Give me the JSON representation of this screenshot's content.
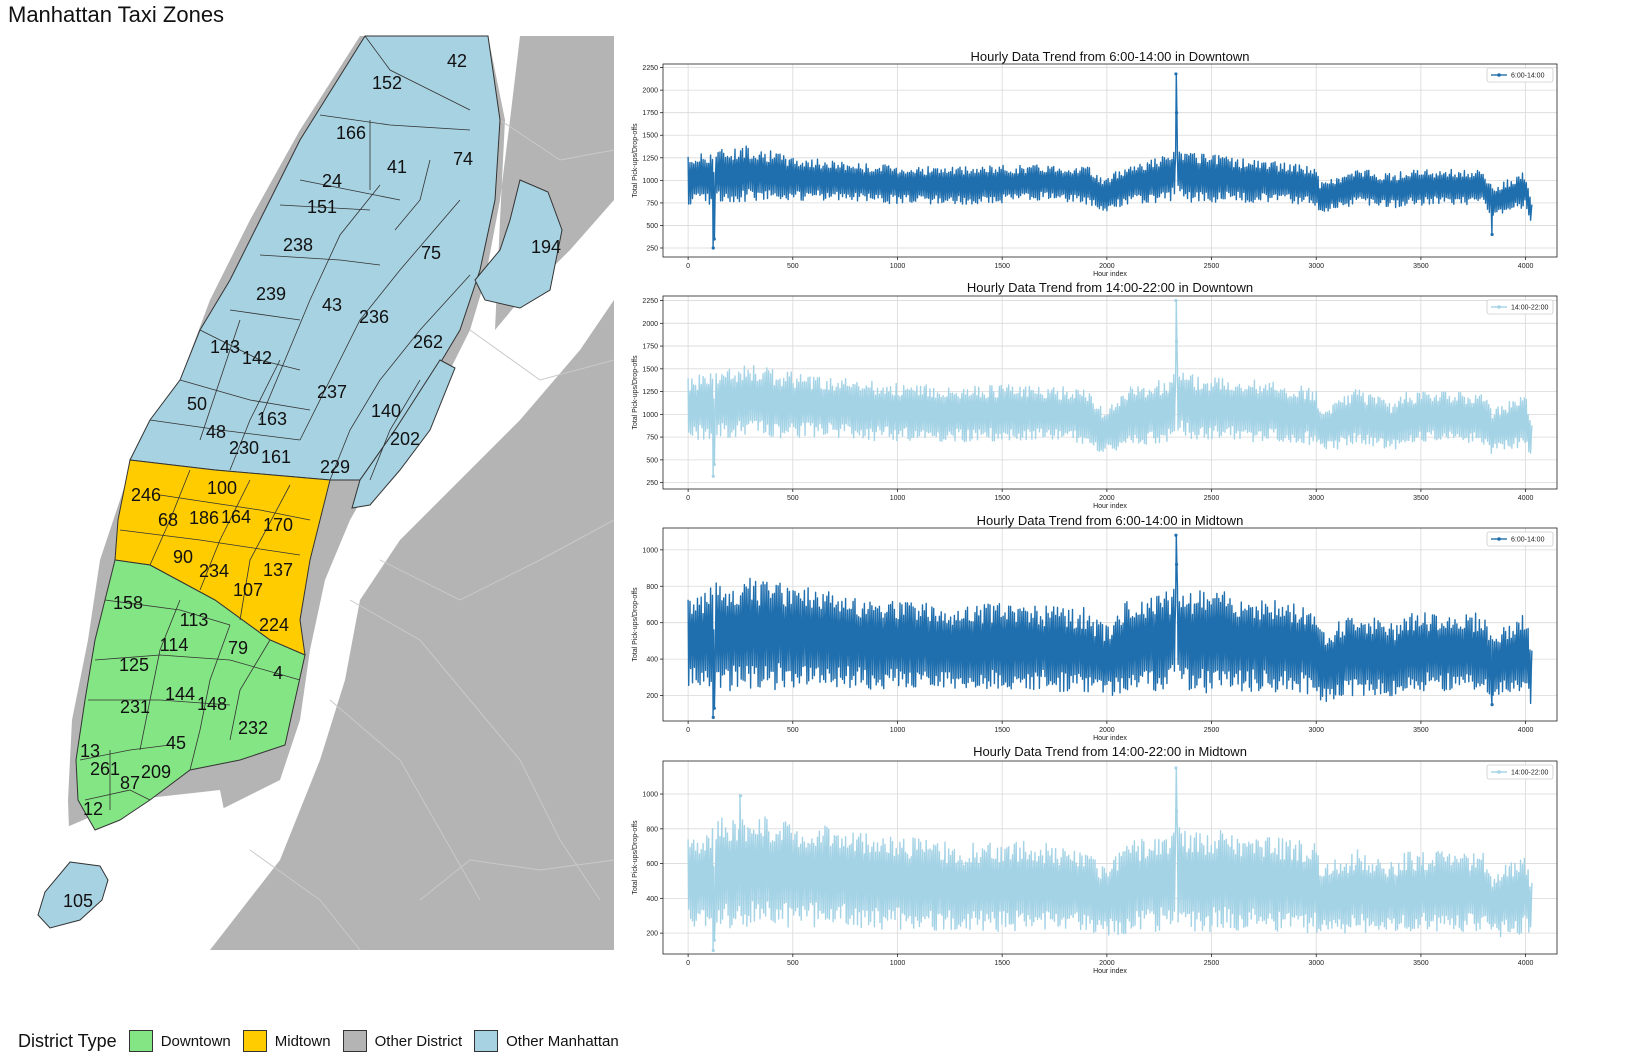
{
  "map": {
    "title": "Manhattan Taxi Zones",
    "colors": {
      "downtown": "#84e584",
      "midtown": "#ffcc00",
      "other_district": "#b4b4b4",
      "other_manhattan": "#a7d2e2",
      "water": "#ffffff"
    },
    "zones": [
      {
        "id": "42",
        "type": "other_manhattan"
      },
      {
        "id": "152",
        "type": "other_manhattan"
      },
      {
        "id": "166",
        "type": "other_manhattan"
      },
      {
        "id": "41",
        "type": "other_manhattan"
      },
      {
        "id": "74",
        "type": "other_manhattan"
      },
      {
        "id": "24",
        "type": "other_manhattan"
      },
      {
        "id": "151",
        "type": "other_manhattan"
      },
      {
        "id": "194",
        "type": "other_manhattan"
      },
      {
        "id": "238",
        "type": "other_manhattan"
      },
      {
        "id": "75",
        "type": "other_manhattan"
      },
      {
        "id": "239",
        "type": "other_manhattan"
      },
      {
        "id": "43",
        "type": "other_manhattan"
      },
      {
        "id": "236",
        "type": "other_manhattan"
      },
      {
        "id": "262",
        "type": "other_manhattan"
      },
      {
        "id": "143",
        "type": "other_manhattan"
      },
      {
        "id": "142",
        "type": "other_manhattan"
      },
      {
        "id": "237",
        "type": "other_manhattan"
      },
      {
        "id": "50",
        "type": "other_manhattan"
      },
      {
        "id": "163",
        "type": "other_manhattan"
      },
      {
        "id": "140",
        "type": "other_manhattan"
      },
      {
        "id": "48",
        "type": "other_manhattan"
      },
      {
        "id": "230",
        "type": "other_manhattan"
      },
      {
        "id": "202",
        "type": "other_manhattan"
      },
      {
        "id": "161",
        "type": "other_manhattan"
      },
      {
        "id": "229",
        "type": "other_manhattan"
      },
      {
        "id": "100",
        "type": "midtown"
      },
      {
        "id": "246",
        "type": "midtown"
      },
      {
        "id": "68",
        "type": "midtown"
      },
      {
        "id": "186",
        "type": "midtown"
      },
      {
        "id": "164",
        "type": "midtown"
      },
      {
        "id": "170",
        "type": "midtown"
      },
      {
        "id": "90",
        "type": "midtown"
      },
      {
        "id": "234",
        "type": "midtown"
      },
      {
        "id": "137",
        "type": "midtown"
      },
      {
        "id": "107",
        "type": "midtown"
      },
      {
        "id": "224",
        "type": "midtown"
      },
      {
        "id": "158",
        "type": "downtown"
      },
      {
        "id": "113",
        "type": "downtown"
      },
      {
        "id": "114",
        "type": "downtown"
      },
      {
        "id": "79",
        "type": "downtown"
      },
      {
        "id": "4",
        "type": "downtown"
      },
      {
        "id": "125",
        "type": "downtown"
      },
      {
        "id": "144",
        "type": "downtown"
      },
      {
        "id": "148",
        "type": "downtown"
      },
      {
        "id": "231",
        "type": "downtown"
      },
      {
        "id": "232",
        "type": "downtown"
      },
      {
        "id": "45",
        "type": "downtown"
      },
      {
        "id": "13",
        "type": "downtown"
      },
      {
        "id": "261",
        "type": "downtown"
      },
      {
        "id": "209",
        "type": "downtown"
      },
      {
        "id": "87",
        "type": "downtown"
      },
      {
        "id": "12",
        "type": "downtown"
      },
      {
        "id": "105",
        "type": "other_manhattan"
      }
    ]
  },
  "legend": {
    "title": "District Type",
    "items": [
      {
        "label": "Downtown",
        "color": "#84e584"
      },
      {
        "label": "Midtown",
        "color": "#ffcc00"
      },
      {
        "label": "Other District",
        "color": "#b4b4b4"
      },
      {
        "label": "Other Manhattan",
        "color": "#a7d2e2"
      }
    ]
  },
  "chart_data": [
    {
      "type": "line",
      "title": "Hourly Data Trend from 6:00-14:00 in Downtown",
      "xlabel": "Hour index",
      "ylabel": "Total Pick-ups/Drop-offs",
      "xlim": [
        -120,
        4150
      ],
      "ylim": [
        150,
        2290
      ],
      "xticks": [
        0,
        500,
        1000,
        1500,
        2000,
        2500,
        3000,
        3500,
        4000
      ],
      "yticks": [
        250,
        500,
        750,
        1000,
        1250,
        1500,
        1750,
        2000,
        2250
      ],
      "grid": true,
      "legend_position": "top-right",
      "series": [
        {
          "name": "6:00-14:00",
          "color": "#1f6ead"
        }
      ],
      "x": [
        0,
        150,
        300,
        500,
        700,
        900,
        1100,
        1300,
        1500,
        1700,
        1900,
        1990,
        2100,
        2300,
        2330,
        2400,
        2600,
        2800,
        3000,
        3020,
        3200,
        3380,
        3400,
        3600,
        3800,
        3840,
        4000,
        4030
      ],
      "baseline": [
        1000,
        1050,
        1080,
        1020,
        1000,
        960,
        950,
        940,
        960,
        980,
        950,
        830,
        960,
        1020,
        1100,
        1030,
        1010,
        980,
        940,
        800,
        930,
        880,
        910,
        930,
        920,
        760,
        900,
        600
      ],
      "spread": [
        250,
        280,
        280,
        220,
        200,
        200,
        190,
        190,
        190,
        180,
        200,
        170,
        200,
        250,
        220,
        250,
        230,
        210,
        200,
        160,
        180,
        170,
        180,
        180,
        180,
        150,
        180,
        150
      ],
      "spikes": [
        {
          "x": 120,
          "y": 250
        },
        {
          "x": 125,
          "y": 350
        },
        {
          "x": 2330,
          "y": 2180
        },
        {
          "x": 2333,
          "y": 1750
        },
        {
          "x": 3840,
          "y": 400
        }
      ]
    },
    {
      "type": "line",
      "title": "Hourly Data Trend from 14:00-22:00 in Downtown",
      "xlabel": "Hour index",
      "ylabel": "Total Pick-ups/Drop-offs",
      "xlim": [
        -120,
        4150
      ],
      "ylim": [
        180,
        2300
      ],
      "xticks": [
        0,
        500,
        1000,
        1500,
        2000,
        2500,
        3000,
        3500,
        4000
      ],
      "yticks": [
        250,
        500,
        750,
        1000,
        1250,
        1500,
        1750,
        2000,
        2250
      ],
      "grid": true,
      "legend_position": "top-right",
      "series": [
        {
          "name": "14:00-22:00",
          "color": "#a4d3e6"
        }
      ],
      "x": [
        0,
        150,
        300,
        500,
        700,
        900,
        1100,
        1300,
        1500,
        1700,
        1900,
        1990,
        2100,
        2300,
        2330,
        2400,
        2600,
        2800,
        3000,
        3020,
        3200,
        3380,
        3400,
        3600,
        3800,
        3840,
        4000,
        4030
      ],
      "baseline": [
        1050,
        1120,
        1150,
        1100,
        1080,
        1040,
        1020,
        1000,
        1020,
        1020,
        980,
        800,
        980,
        1040,
        1150,
        1080,
        1060,
        1020,
        980,
        820,
        980,
        860,
        960,
        980,
        950,
        800,
        950,
        700
      ],
      "spread": [
        330,
        360,
        360,
        330,
        300,
        300,
        280,
        280,
        280,
        270,
        280,
        230,
        300,
        320,
        320,
        330,
        320,
        300,
        290,
        230,
        280,
        230,
        260,
        260,
        260,
        230,
        260,
        200
      ],
      "spikes": [
        {
          "x": 120,
          "y": 320
        },
        {
          "x": 125,
          "y": 450
        },
        {
          "x": 2330,
          "y": 2250
        },
        {
          "x": 2333,
          "y": 1800
        }
      ]
    },
    {
      "type": "line",
      "title": "Hourly Data Trend from 6:00-14:00 in Midtown",
      "xlabel": "Hour index",
      "ylabel": "Total Pick-ups/Drop-offs",
      "xlim": [
        -120,
        4150
      ],
      "ylim": [
        60,
        1120
      ],
      "xticks": [
        0,
        500,
        1000,
        1500,
        2000,
        2500,
        3000,
        3500,
        4000
      ],
      "yticks": [
        200,
        400,
        600,
        800,
        1000
      ],
      "grid": true,
      "legend_position": "top-right",
      "series": [
        {
          "name": "6:00-14:00",
          "color": "#1f6ead"
        }
      ],
      "x": [
        0,
        150,
        300,
        500,
        700,
        900,
        1100,
        1300,
        1500,
        1700,
        1900,
        1990,
        2100,
        2300,
        2330,
        2400,
        2600,
        2800,
        3000,
        3020,
        3200,
        3380,
        3400,
        3600,
        3800,
        3840,
        4000,
        4030
      ],
      "baseline": [
        480,
        520,
        540,
        520,
        500,
        480,
        470,
        460,
        470,
        460,
        440,
        380,
        470,
        500,
        560,
        500,
        490,
        470,
        450,
        360,
        430,
        390,
        440,
        440,
        430,
        360,
        430,
        300
      ],
      "spread": [
        230,
        280,
        280,
        260,
        240,
        230,
        220,
        210,
        220,
        210,
        220,
        180,
        230,
        250,
        240,
        260,
        250,
        230,
        220,
        180,
        210,
        180,
        200,
        200,
        200,
        160,
        200,
        160
      ],
      "spikes": [
        {
          "x": 120,
          "y": 80
        },
        {
          "x": 125,
          "y": 130
        },
        {
          "x": 2330,
          "y": 1080
        },
        {
          "x": 2333,
          "y": 920
        },
        {
          "x": 3840,
          "y": 150
        }
      ]
    },
    {
      "type": "line",
      "title": "Hourly Data Trend from 14:00-22:00 in Midtown",
      "xlabel": "Hour index",
      "ylabel": "Total Pick-ups/Drop-offs",
      "xlim": [
        -120,
        4150
      ],
      "ylim": [
        80,
        1190
      ],
      "xticks": [
        0,
        500,
        1000,
        1500,
        2000,
        2500,
        3000,
        3500,
        4000
      ],
      "yticks": [
        200,
        400,
        600,
        800,
        1000
      ],
      "grid": true,
      "legend_position": "top-right",
      "series": [
        {
          "name": "14:00-22:00",
          "color": "#a4d3e6"
        }
      ],
      "x": [
        0,
        150,
        300,
        500,
        700,
        900,
        1100,
        1300,
        1500,
        1700,
        1900,
        1990,
        2100,
        2300,
        2330,
        2400,
        2600,
        2800,
        3000,
        3020,
        3200,
        3380,
        3400,
        3600,
        3800,
        3840,
        4000,
        4030
      ],
      "baseline": [
        490,
        540,
        560,
        540,
        520,
        500,
        480,
        460,
        470,
        470,
        440,
        380,
        460,
        500,
        540,
        500,
        500,
        480,
        460,
        380,
        440,
        400,
        440,
        440,
        430,
        360,
        430,
        330
      ],
      "spread": [
        230,
        290,
        300,
        280,
        260,
        250,
        240,
        230,
        240,
        230,
        220,
        180,
        240,
        260,
        250,
        270,
        260,
        250,
        240,
        190,
        220,
        190,
        210,
        210,
        210,
        170,
        210,
        170
      ],
      "spikes": [
        {
          "x": 120,
          "y": 100
        },
        {
          "x": 125,
          "y": 160
        },
        {
          "x": 250,
          "y": 990
        },
        {
          "x": 2330,
          "y": 1150
        },
        {
          "x": 2333,
          "y": 900
        }
      ]
    }
  ]
}
